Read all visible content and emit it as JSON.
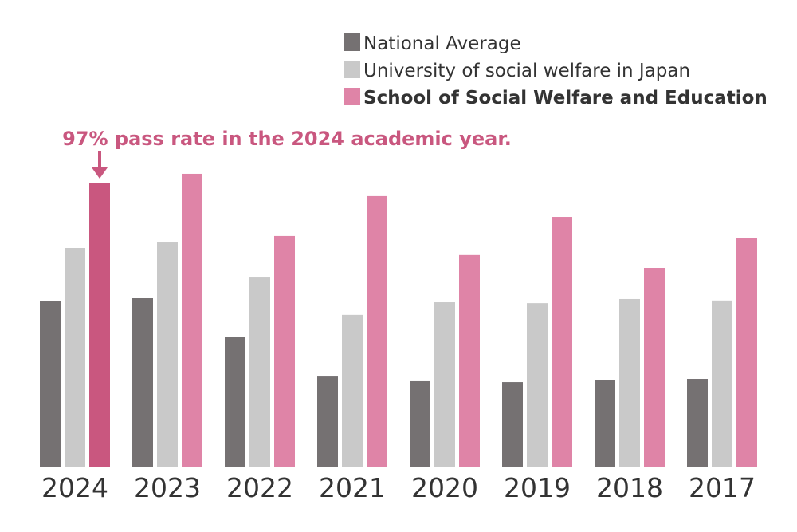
{
  "chart_data": {
    "type": "bar",
    "title": "",
    "xlabel": "",
    "ylabel": "",
    "ylim": [
      0,
      100
    ],
    "grid": false,
    "legend_position": "top-right",
    "categories": [
      "2024",
      "2023",
      "2022",
      "2021",
      "2020",
      "2019",
      "2018",
      "2017"
    ],
    "series": [
      {
        "name": "National Average",
        "color": "#757172",
        "values": [
          56.5,
          57.8,
          44.5,
          30.9,
          29.3,
          29.0,
          29.6,
          30.1
        ]
      },
      {
        "name": "University of social welfare in Japan",
        "color": "#c9c9c9",
        "values": [
          74.7,
          76.6,
          64.9,
          51.9,
          56.2,
          55.9,
          57.3,
          56.8
        ]
      },
      {
        "name": "School of Social Welfare and Education",
        "color": "#df84a7",
        "values": [
          97,
          100,
          78.8,
          92.4,
          72.3,
          85.3,
          67.9,
          78.2
        ]
      }
    ],
    "highlight": {
      "category": "2024",
      "series": "School of Social Welfare and Education",
      "color": "#c9577f"
    },
    "annotation": "97% pass rate in the 2024 academic year."
  }
}
